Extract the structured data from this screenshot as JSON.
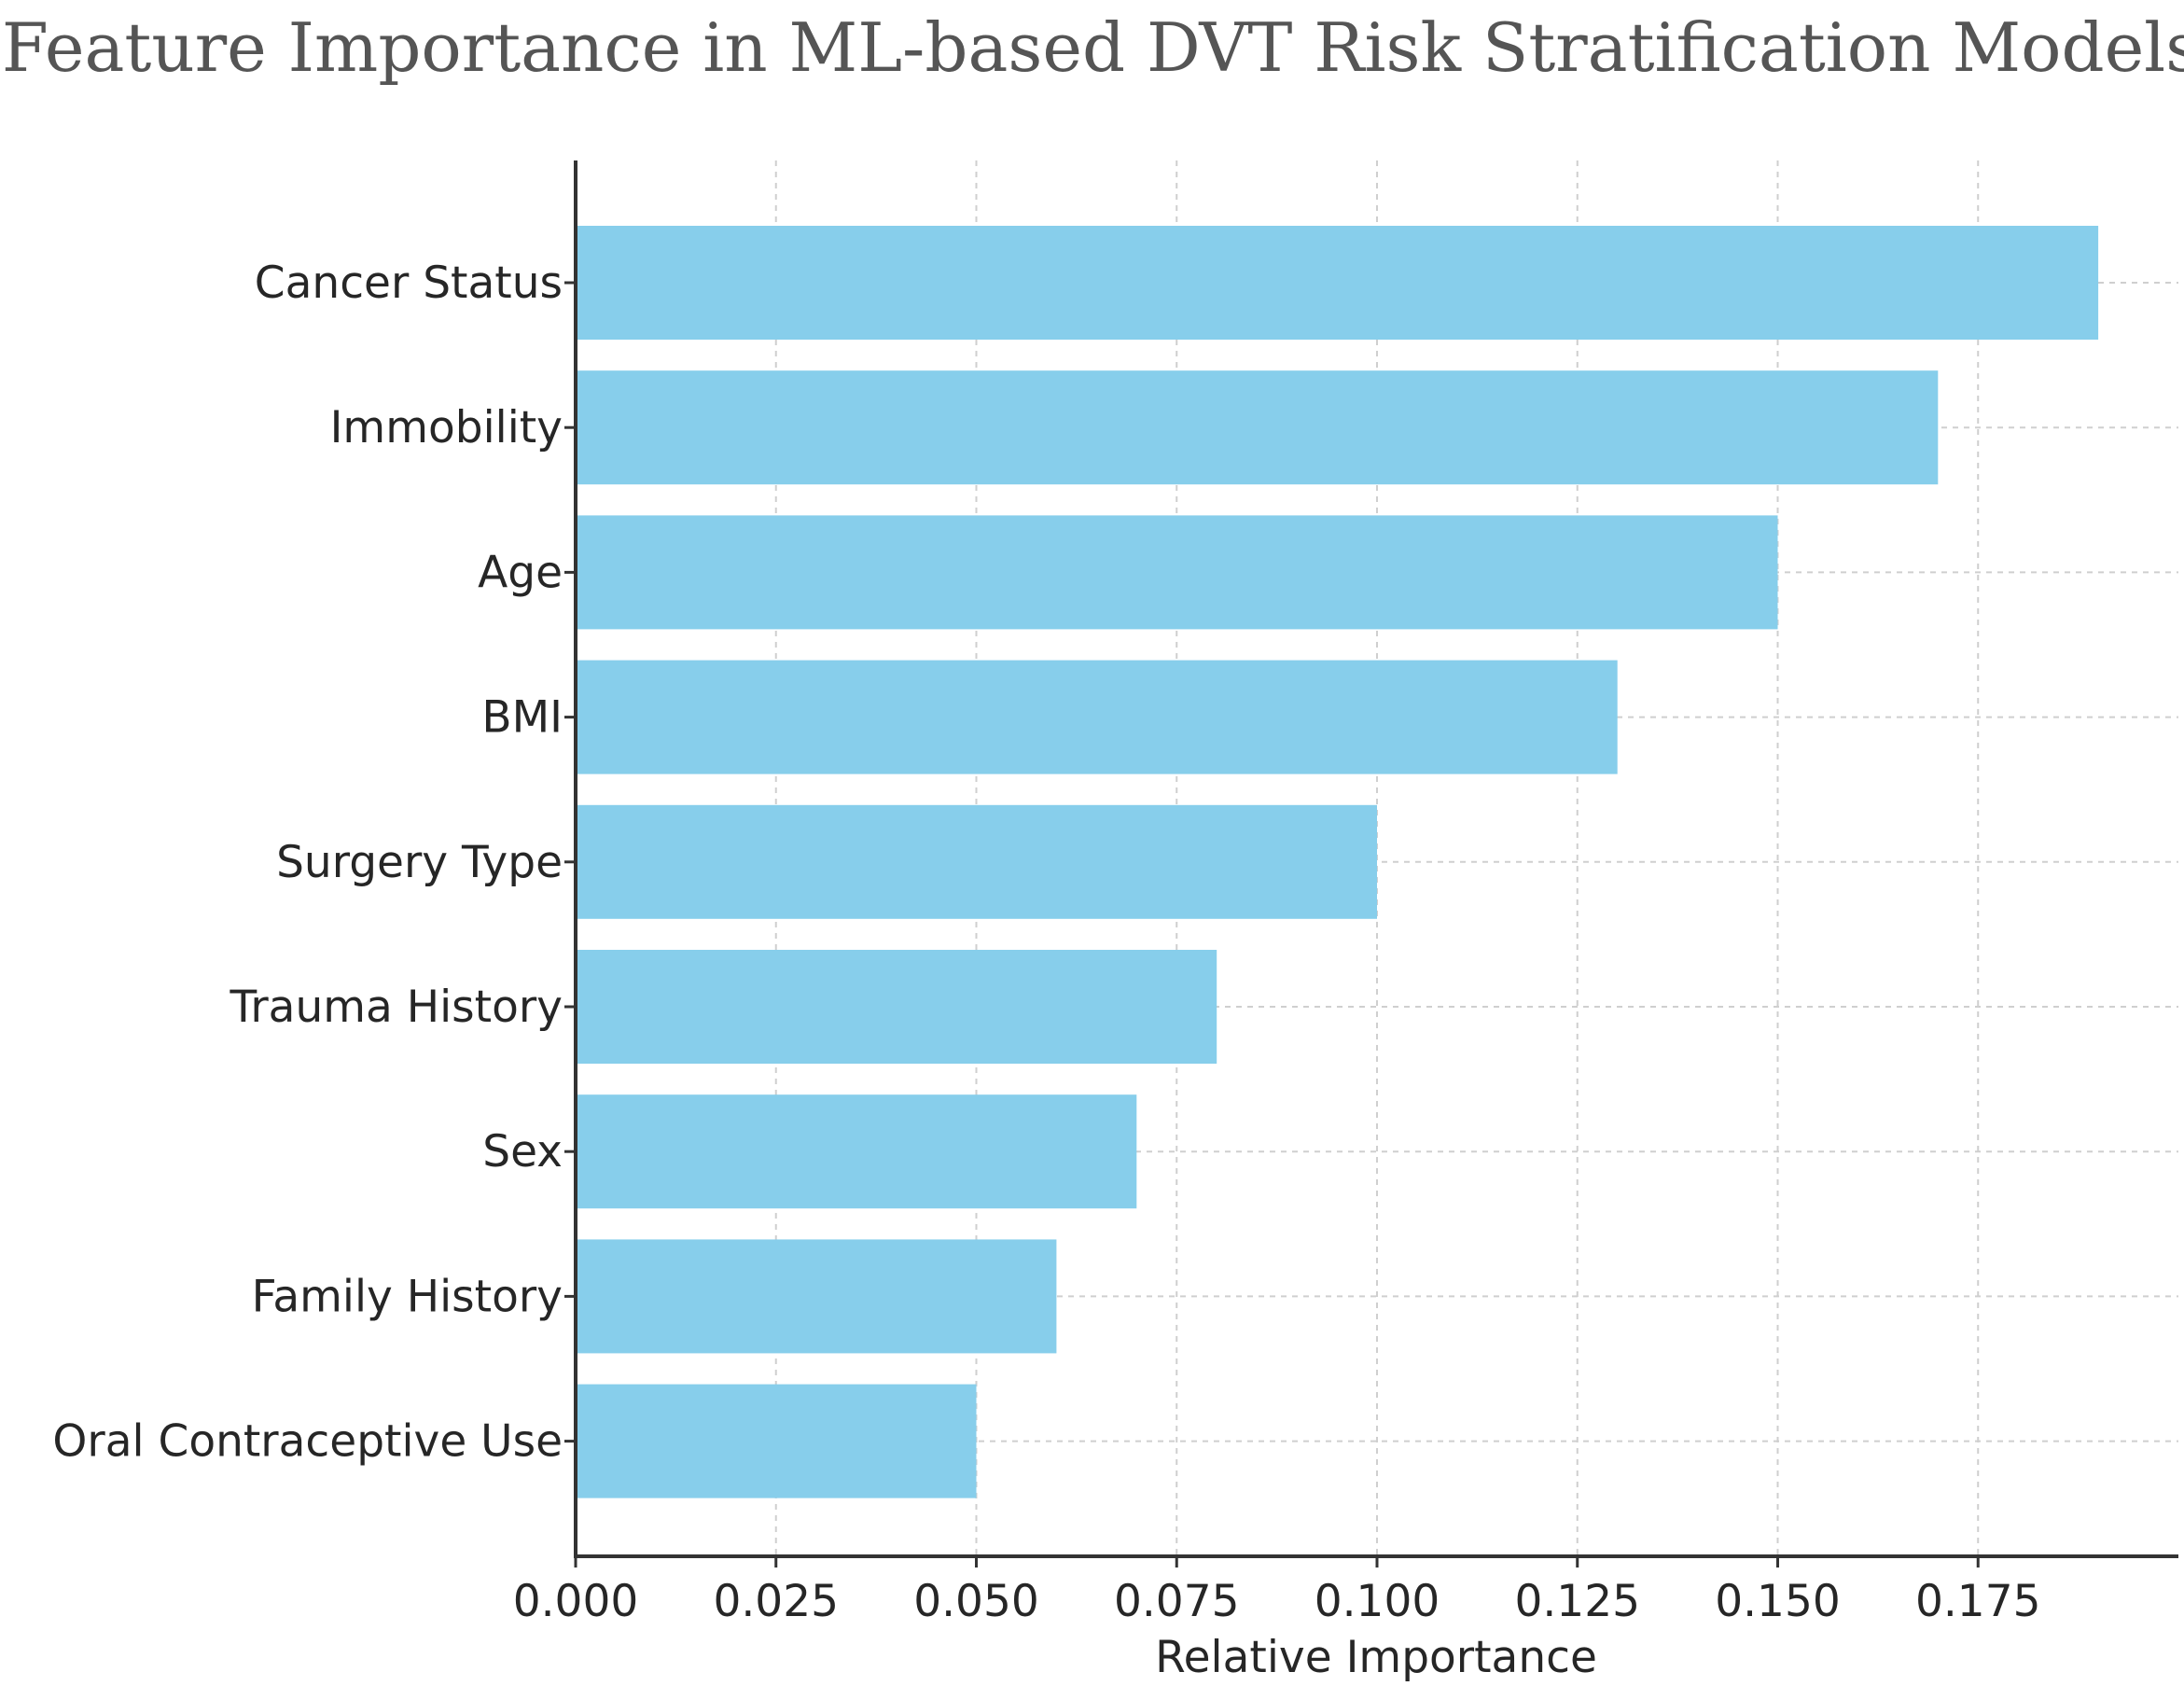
{
  "chart_data": {
    "type": "bar",
    "orientation": "horizontal",
    "title": "Feature Importance in ML-based DVT Risk Stratification Models",
    "xlabel": "Relative Importance",
    "ylabel": "",
    "categories": [
      "Cancer Status",
      "Immobility",
      "Age",
      "BMI",
      "Surgery Type",
      "Trauma History",
      "Sex",
      "Family History",
      "Oral Contraceptive Use"
    ],
    "values": [
      0.19,
      0.17,
      0.15,
      0.13,
      0.1,
      0.08,
      0.07,
      0.06,
      0.05
    ],
    "xlim": [
      0,
      0.2
    ],
    "x_ticks": [
      0.0,
      0.025,
      0.05,
      0.075,
      0.1,
      0.125,
      0.15,
      0.175
    ],
    "x_tick_labels": [
      "0.000",
      "0.025",
      "0.050",
      "0.075",
      "0.100",
      "0.125",
      "0.150",
      "0.175"
    ],
    "grid": true,
    "bar_color": "#87ceeb"
  }
}
